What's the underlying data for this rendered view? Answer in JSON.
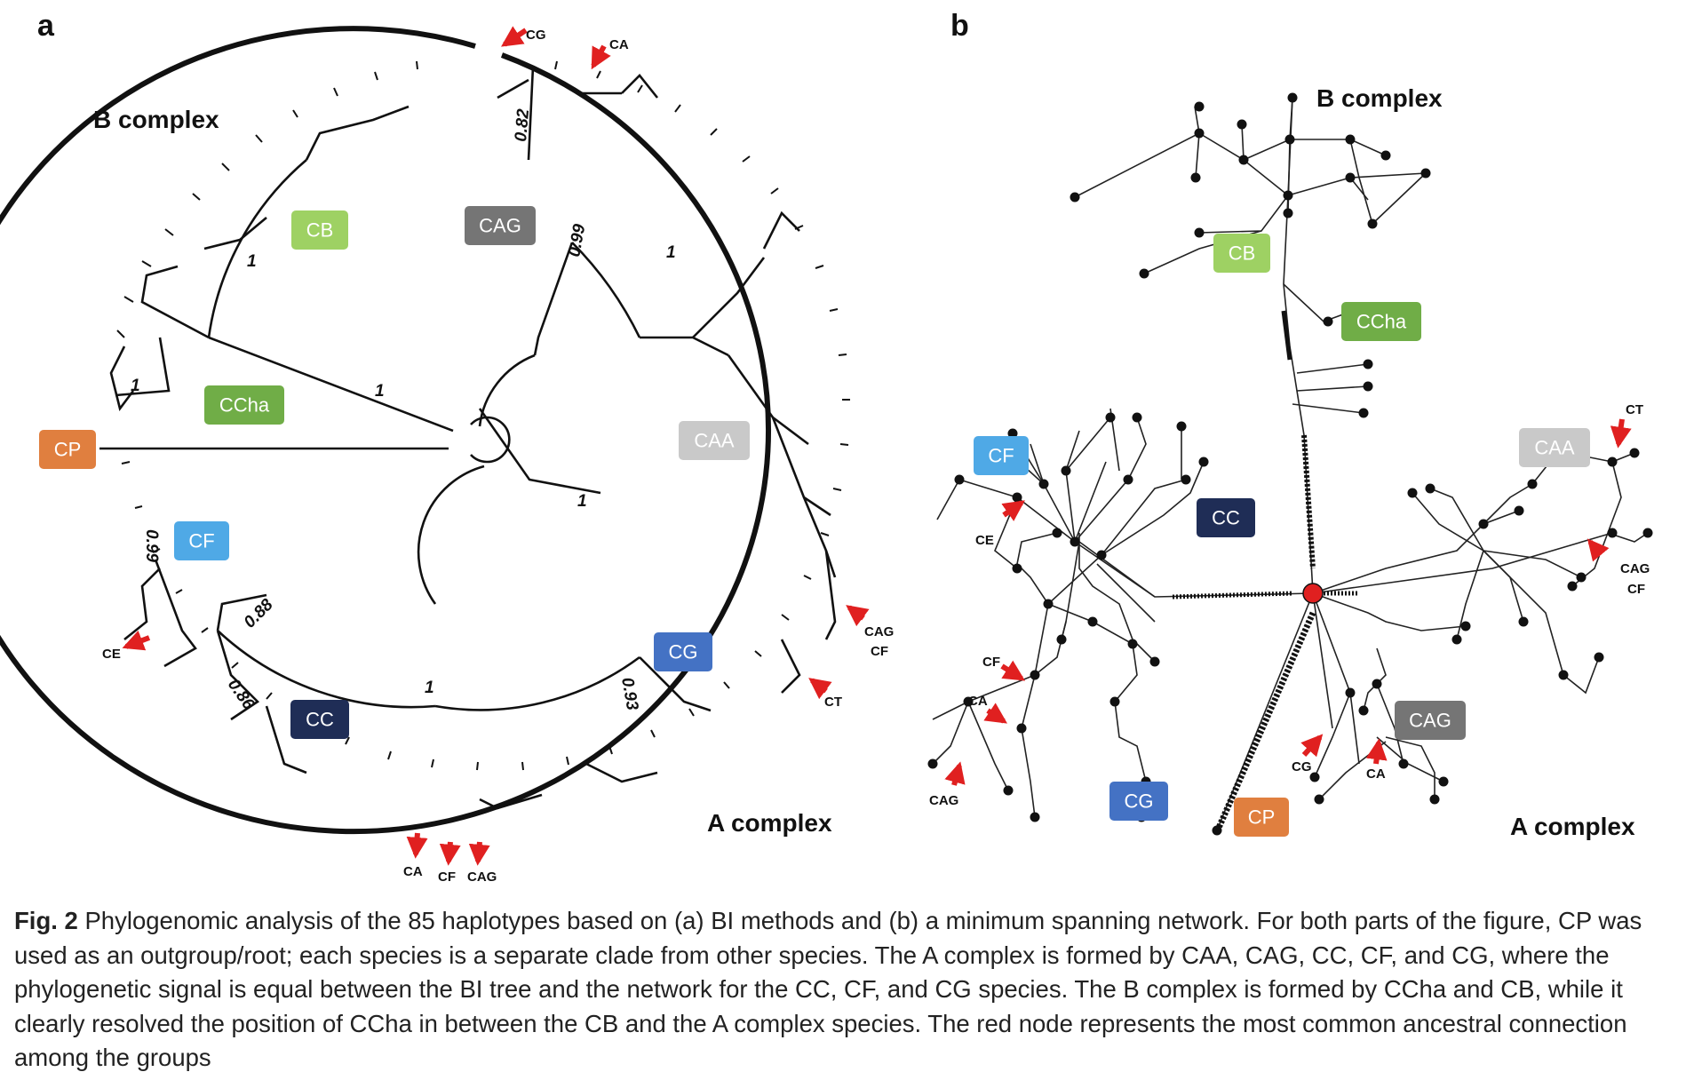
{
  "panel_a": {
    "letter": "a",
    "labels": {
      "b_complex": "B complex",
      "a_complex": "A complex"
    },
    "clades": [
      {
        "id": "cp",
        "text": "CP",
        "color": "#e07f3f"
      },
      {
        "id": "cb",
        "text": "CB",
        "color": "#9ed163"
      },
      {
        "id": "ccha",
        "text": "CCha",
        "color": "#70ad47"
      },
      {
        "id": "cag",
        "text": "CAG",
        "color": "#757575"
      },
      {
        "id": "caa",
        "text": "CAA",
        "color": "#c9c9c9"
      },
      {
        "id": "cf",
        "text": "CF",
        "color": "#4fa9e6"
      },
      {
        "id": "cc",
        "text": "CC",
        "color": "#1f2d56"
      },
      {
        "id": "cg",
        "text": "CG",
        "color": "#4472c4"
      }
    ],
    "support_values": [
      "0.82",
      "0.99",
      "1",
      "1",
      "1",
      "1",
      "1",
      "0.99",
      "0.88",
      "0.86",
      "1",
      "0.93"
    ],
    "arrow_labels": [
      "CG",
      "CA",
      "CE",
      "CA",
      "CF",
      "CAG",
      "CAG",
      "CF",
      "CT"
    ]
  },
  "panel_b": {
    "letter": "b",
    "labels": {
      "b_complex": "B complex",
      "a_complex": "A complex"
    },
    "clades": [
      {
        "id": "cb",
        "text": "CB",
        "color": "#9ed163"
      },
      {
        "id": "ccha",
        "text": "CCha",
        "color": "#70ad47"
      },
      {
        "id": "cf",
        "text": "CF",
        "color": "#4fa9e6"
      },
      {
        "id": "cc",
        "text": "CC",
        "color": "#1f2d56"
      },
      {
        "id": "caa",
        "text": "CAA",
        "color": "#c9c9c9"
      },
      {
        "id": "cag",
        "text": "CAG",
        "color": "#757575"
      },
      {
        "id": "cg",
        "text": "CG",
        "color": "#4472c4"
      },
      {
        "id": "cp",
        "text": "CP",
        "color": "#e07f3f"
      }
    ],
    "arrow_labels": [
      "CT",
      "CE",
      "CAG",
      "CF",
      "CF",
      "CA",
      "CAG",
      "CG",
      "CA"
    ]
  },
  "caption": {
    "label": "Fig. 2",
    "text": " Phylogenomic analysis of the 85 haplotypes based on (a) BI methods and (b) a minimum spanning network. For both parts of the figure, CP was used as an outgroup/root; each species is a separate clade from other species. The A complex is formed by CAA, CAG, CC, CF, and CG, where the phylogenetic signal is equal between the BI tree and the network for the CC, CF, and CG species. The B complex is formed by CCha and CB, while it clearly resolved the position of CCha in between the CB and the A complex species. The red node represents the most common ancestral connection among the groups"
  }
}
